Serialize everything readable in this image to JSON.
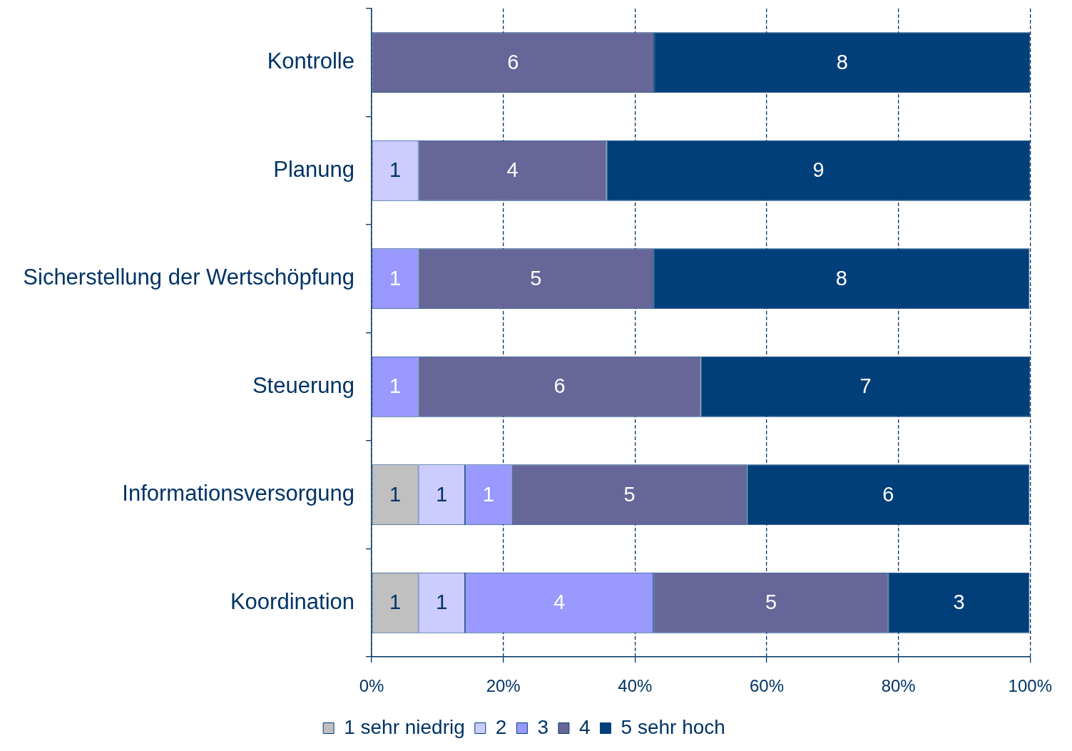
{
  "chart_data": {
    "type": "bar",
    "orientation": "horizontal",
    "stacked": true,
    "categories": [
      "Kontrolle",
      "Planung",
      "Sicherstellung der Wertschöpfung",
      "Steuerung",
      "Informationsversorgung",
      "Koordination"
    ],
    "series": [
      {
        "name": "1 sehr niedrig",
        "color": "#c0c0c0",
        "values": [
          null,
          null,
          null,
          null,
          7.1,
          7.1
        ]
      },
      {
        "name": "2",
        "color": "#ccccff",
        "values": [
          null,
          7.1,
          null,
          null,
          7.1,
          7.1
        ]
      },
      {
        "name": "3",
        "color": "#9999ff",
        "values": [
          null,
          null,
          7.1,
          7.1,
          7.1,
          28.6
        ]
      },
      {
        "name": "4",
        "color": "#666699",
        "values": [
          42.9,
          28.6,
          35.7,
          42.9,
          35.7,
          35.7
        ]
      },
      {
        "name": "5 sehr hoch",
        "color": "#003f7a",
        "values": [
          57.1,
          64.3,
          57.1,
          50,
          42.9,
          21.4
        ]
      }
    ],
    "annotations": [
      "6",
      "8",
      "1",
      "4",
      "9",
      "1",
      "5",
      "8",
      "1",
      "6",
      "7",
      "1",
      "1",
      "1",
      "5",
      "6",
      "1",
      "1",
      "4",
      "5",
      "3"
    ],
    "xlim": [
      0,
      100
    ],
    "xticks": [
      {
        "value": 0,
        "label": "0%"
      },
      {
        "value": 20,
        "label": "20%"
      },
      {
        "value": 40,
        "label": "40%"
      },
      {
        "value": 60,
        "label": "60%"
      },
      {
        "value": 80,
        "label": "80%"
      },
      {
        "value": 100,
        "label": "100%"
      }
    ],
    "grid": "x",
    "legend": "bottom"
  }
}
